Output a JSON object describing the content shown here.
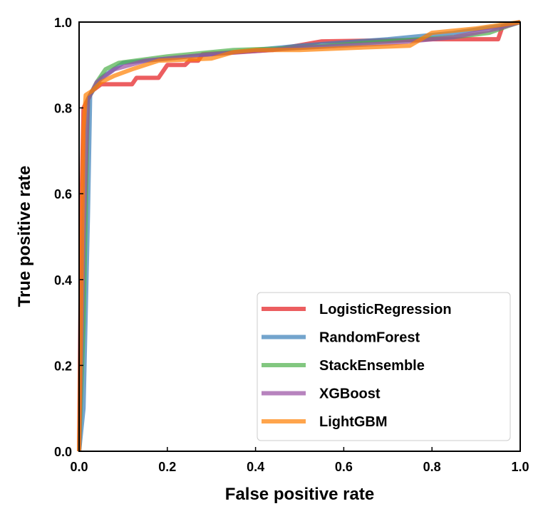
{
  "chart_data": {
    "type": "line",
    "title": "",
    "xlabel": "False positive rate",
    "ylabel": "True positive rate",
    "xlim": [
      0.0,
      1.0
    ],
    "ylim": [
      0.0,
      1.0
    ],
    "xticks": [
      "0.0",
      "0.2",
      "0.4",
      "0.6",
      "0.8",
      "1.0"
    ],
    "yticks": [
      "0.0",
      "0.2",
      "0.4",
      "0.6",
      "0.8",
      "1.0"
    ],
    "grid": false,
    "legend_position": "lower-right",
    "series": [
      {
        "name": "LogisticRegression",
        "color": "#e41a1c",
        "points": [
          [
            0,
            0
          ],
          [
            0.005,
            0.55
          ],
          [
            0.01,
            0.8
          ],
          [
            0.02,
            0.82
          ],
          [
            0.03,
            0.84
          ],
          [
            0.05,
            0.855
          ],
          [
            0.12,
            0.855
          ],
          [
            0.13,
            0.87
          ],
          [
            0.18,
            0.87
          ],
          [
            0.2,
            0.9
          ],
          [
            0.24,
            0.9
          ],
          [
            0.25,
            0.91
          ],
          [
            0.27,
            0.91
          ],
          [
            0.28,
            0.925
          ],
          [
            0.44,
            0.935
          ],
          [
            0.55,
            0.955
          ],
          [
            0.75,
            0.958
          ],
          [
            0.8,
            0.96
          ],
          [
            0.95,
            0.96
          ],
          [
            0.96,
            0.99
          ],
          [
            1,
            1
          ]
        ]
      },
      {
        "name": "RandomForest",
        "color": "#377eb8",
        "points": [
          [
            0,
            0
          ],
          [
            0.01,
            0.1
          ],
          [
            0.02,
            0.55
          ],
          [
            0.025,
            0.83
          ],
          [
            0.05,
            0.87
          ],
          [
            0.1,
            0.905
          ],
          [
            0.2,
            0.915
          ],
          [
            0.35,
            0.93
          ],
          [
            0.5,
            0.945
          ],
          [
            0.7,
            0.96
          ],
          [
            0.85,
            0.975
          ],
          [
            0.95,
            0.99
          ],
          [
            1,
            1
          ]
        ]
      },
      {
        "name": "StackEnsemble",
        "color": "#4daf4a",
        "points": [
          [
            0,
            0
          ],
          [
            0.01,
            0.3
          ],
          [
            0.02,
            0.82
          ],
          [
            0.04,
            0.86
          ],
          [
            0.06,
            0.89
          ],
          [
            0.09,
            0.905
          ],
          [
            0.2,
            0.92
          ],
          [
            0.35,
            0.935
          ],
          [
            0.5,
            0.94
          ],
          [
            0.7,
            0.955
          ],
          [
            0.85,
            0.965
          ],
          [
            0.93,
            0.975
          ],
          [
            0.97,
            0.99
          ],
          [
            1,
            1
          ]
        ]
      },
      {
        "name": "XGBoost",
        "color": "#984ea3",
        "points": [
          [
            0,
            0
          ],
          [
            0.01,
            0.5
          ],
          [
            0.02,
            0.82
          ],
          [
            0.04,
            0.86
          ],
          [
            0.08,
            0.89
          ],
          [
            0.15,
            0.91
          ],
          [
            0.3,
            0.925
          ],
          [
            0.5,
            0.94
          ],
          [
            0.7,
            0.95
          ],
          [
            0.85,
            0.965
          ],
          [
            0.95,
            0.985
          ],
          [
            1,
            1
          ]
        ]
      },
      {
        "name": "LightGBM",
        "color": "#ff7f00",
        "points": [
          [
            0,
            0
          ],
          [
            0.01,
            0.75
          ],
          [
            0.015,
            0.83
          ],
          [
            0.03,
            0.84
          ],
          [
            0.05,
            0.86
          ],
          [
            0.08,
            0.875
          ],
          [
            0.12,
            0.89
          ],
          [
            0.18,
            0.91
          ],
          [
            0.3,
            0.915
          ],
          [
            0.35,
            0.93
          ],
          [
            0.4,
            0.935
          ],
          [
            0.5,
            0.935
          ],
          [
            0.75,
            0.945
          ],
          [
            0.8,
            0.975
          ],
          [
            0.9,
            0.985
          ],
          [
            1,
            1
          ]
        ]
      }
    ]
  }
}
